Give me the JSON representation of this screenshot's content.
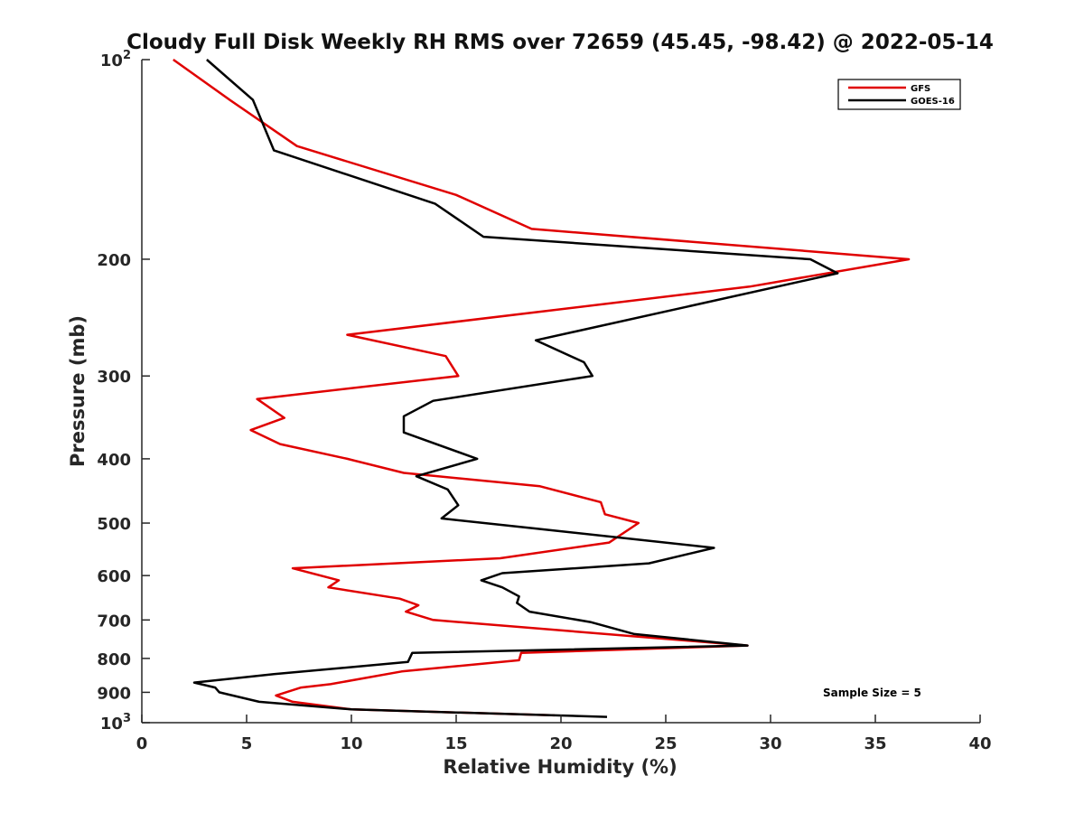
{
  "chart_data": {
    "type": "line",
    "title": "Cloudy Full Disk Weekly RH RMS over 72659 (45.45, -98.42) @ 2022-05-14",
    "xlabel": "Relative Humidity (%)",
    "ylabel": "Pressure (mb)",
    "xlim": [
      0,
      40
    ],
    "ylim": [
      100,
      1000
    ],
    "y_scale": "log",
    "y_reversed": true,
    "grid": false,
    "legend_position": "top-right",
    "x_ticks": [
      0,
      5,
      10,
      15,
      20,
      25,
      30,
      35,
      40
    ],
    "y_ticks": [
      {
        "value": 100,
        "base": "10",
        "exp": "2"
      },
      {
        "value": 200,
        "label": "200"
      },
      {
        "value": 300,
        "label": "300"
      },
      {
        "value": 400,
        "label": "400"
      },
      {
        "value": 500,
        "label": "500"
      },
      {
        "value": 600,
        "label": "600"
      },
      {
        "value": 700,
        "label": "700"
      },
      {
        "value": 800,
        "label": "800"
      },
      {
        "value": 900,
        "label": "900"
      },
      {
        "value": 1000,
        "base": "10",
        "exp": "3"
      }
    ],
    "series": [
      {
        "name": "GFS",
        "color": "#e00000",
        "points": [
          [
            1.5,
            100
          ],
          [
            4.2,
            115
          ],
          [
            7.4,
            135
          ],
          [
            15.0,
            160
          ],
          [
            18.6,
            180
          ],
          [
            36.6,
            200
          ],
          [
            29.0,
            220
          ],
          [
            9.8,
            260
          ],
          [
            14.5,
            280
          ],
          [
            15.1,
            300
          ],
          [
            5.5,
            325
          ],
          [
            6.8,
            347
          ],
          [
            5.2,
            362
          ],
          [
            6.6,
            380
          ],
          [
            9.8,
            400
          ],
          [
            12.5,
            420
          ],
          [
            19.0,
            440
          ],
          [
            21.9,
            465
          ],
          [
            22.1,
            485
          ],
          [
            23.7,
            500
          ],
          [
            22.3,
            535
          ],
          [
            17.1,
            565
          ],
          [
            7.2,
            585
          ],
          [
            9.4,
            610
          ],
          [
            8.9,
            625
          ],
          [
            12.3,
            650
          ],
          [
            13.2,
            665
          ],
          [
            12.6,
            680
          ],
          [
            13.9,
            700
          ],
          [
            28.9,
            765
          ],
          [
            18.1,
            785
          ],
          [
            18.0,
            805
          ],
          [
            12.4,
            837
          ],
          [
            9.0,
            875
          ],
          [
            7.6,
            885
          ],
          [
            6.4,
            910
          ],
          [
            7.2,
            930
          ],
          [
            10.0,
            955
          ],
          [
            19.7,
            975
          ]
        ]
      },
      {
        "name": "GOES-16",
        "color": "#000000",
        "points": [
          [
            3.1,
            100
          ],
          [
            5.3,
            115
          ],
          [
            6.3,
            137
          ],
          [
            14.0,
            165
          ],
          [
            16.3,
            185
          ],
          [
            31.9,
            200
          ],
          [
            33.2,
            210
          ],
          [
            18.8,
            265
          ],
          [
            21.1,
            286
          ],
          [
            21.5,
            300
          ],
          [
            13.9,
            327
          ],
          [
            12.5,
            345
          ],
          [
            12.5,
            365
          ],
          [
            16.0,
            400
          ],
          [
            13.1,
            425
          ],
          [
            14.6,
            445
          ],
          [
            15.1,
            470
          ],
          [
            14.3,
            492
          ],
          [
            18.9,
            510
          ],
          [
            27.3,
            545
          ],
          [
            24.2,
            575
          ],
          [
            17.2,
            595
          ],
          [
            16.2,
            610
          ],
          [
            17.2,
            625
          ],
          [
            18.0,
            645
          ],
          [
            17.9,
            660
          ],
          [
            18.5,
            680
          ],
          [
            21.4,
            705
          ],
          [
            23.5,
            735
          ],
          [
            28.9,
            765
          ],
          [
            12.9,
            785
          ],
          [
            12.7,
            810
          ],
          [
            6.3,
            845
          ],
          [
            2.5,
            870
          ],
          [
            3.5,
            885
          ],
          [
            3.7,
            900
          ],
          [
            5.6,
            930
          ],
          [
            10.0,
            955
          ],
          [
            22.2,
            980
          ]
        ]
      }
    ],
    "annotation": "Sample Size = 5"
  }
}
